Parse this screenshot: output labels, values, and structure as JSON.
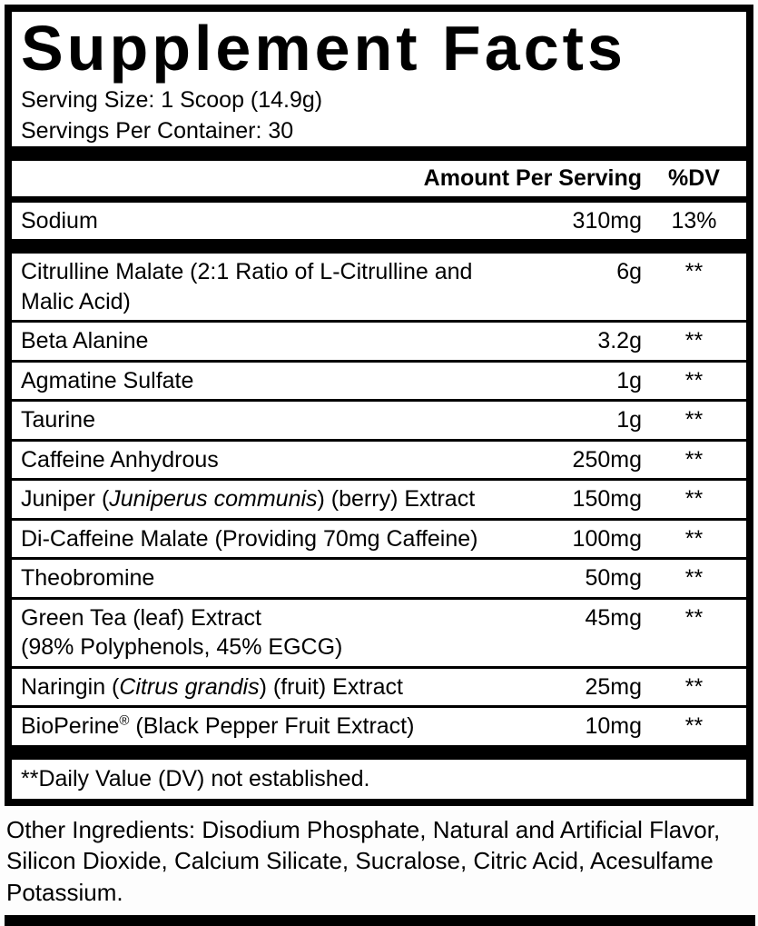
{
  "label": {
    "title": "Supplement Facts",
    "serving_size": "Serving Size: 1 Scoop (14.9g)",
    "servings_per_container": "Servings Per Container: 30",
    "columns": {
      "amount": "Amount Per Serving",
      "dv": "%DV"
    },
    "sodium": {
      "name": "Sodium",
      "amount": "310mg",
      "dv": "13%"
    },
    "ingredients": [
      {
        "name": [
          {
            "t": "Citrulline Malate (2:1 Ratio of L-Citrulline and Malic Acid)"
          }
        ],
        "amount": "6g",
        "dv": "**"
      },
      {
        "name": [
          {
            "t": "Beta Alanine"
          }
        ],
        "amount": "3.2g",
        "dv": "**"
      },
      {
        "name": [
          {
            "t": "Agmatine Sulfate"
          }
        ],
        "amount": "1g",
        "dv": "**"
      },
      {
        "name": [
          {
            "t": "Taurine"
          }
        ],
        "amount": "1g",
        "dv": "**"
      },
      {
        "name": [
          {
            "t": "Caffeine Anhydrous"
          }
        ],
        "amount": "250mg",
        "dv": "**"
      },
      {
        "name": [
          {
            "t": "Juniper ("
          },
          {
            "t": "Juniperus communis",
            "i": true
          },
          {
            "t": ") (berry) Extract"
          }
        ],
        "amount": "150mg",
        "dv": "**"
      },
      {
        "name": [
          {
            "t": "Di-Caffeine Malate (Providing 70mg Caffeine)"
          }
        ],
        "amount": "100mg",
        "dv": "**"
      },
      {
        "name": [
          {
            "t": "Theobromine"
          }
        ],
        "amount": "50mg",
        "dv": "**"
      },
      {
        "name": [
          {
            "t": "Green Tea (leaf) Extract"
          },
          {
            "br": true
          },
          {
            "t": "(98% Polyphenols, 45% EGCG)"
          }
        ],
        "amount": "45mg",
        "dv": "**"
      },
      {
        "name": [
          {
            "t": "Naringin ("
          },
          {
            "t": "Citrus grandis",
            "i": true
          },
          {
            "t": ") (fruit) Extract"
          }
        ],
        "amount": "25mg",
        "dv": "**"
      },
      {
        "name": [
          {
            "t": "BioPerine"
          },
          {
            "t": "®",
            "sup": true
          },
          {
            "t": " (Black Pepper Fruit Extract)"
          }
        ],
        "amount": "10mg",
        "dv": "**"
      }
    ],
    "footnote": "**Daily Value (DV) not established.",
    "other_ingredients": "Other Ingredients: Disodium Phosphate, Natural and Artificial Flavor, Silicon Dioxide, Calcium Silicate, Sucralose, Citric Acid, Acesulfame Potassium.",
    "colors": {
      "ink": "#000000",
      "background": "#ffffff"
    }
  }
}
